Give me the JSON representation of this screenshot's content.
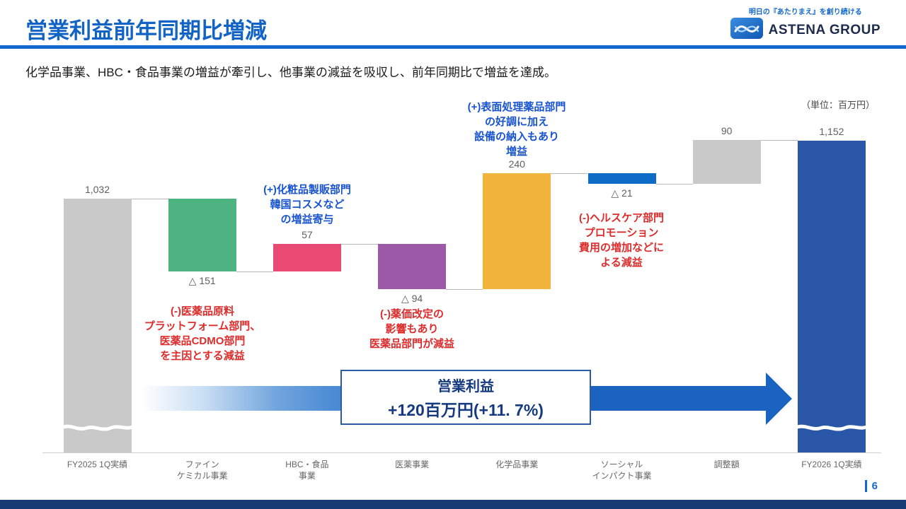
{
  "slide": {
    "title": "営業利益前年同期比増減",
    "lead": "化学品事業、HBC・食品事業の増益が牽引し、他事業の減益を吸収し、前年同期比で増益を達成。",
    "unit_label": "（単位：百万円）",
    "page_number": "6"
  },
  "logo": {
    "tagline": "明日の『あたりまえ』を創り続ける",
    "name": "ASTENA GROUP"
  },
  "summary_box": {
    "line1": "営業利益",
    "line2": "+120百万円(+11. 7%)"
  },
  "annotations": {
    "chemical": {
      "text": "(+)表面処理薬品部門\nの好調に加え\n設備の納入もあり\n増益",
      "color": "#1853d2"
    },
    "hbc_food": {
      "text": "(+)化粧品製販部門\n韓国コスメなど\nの増益寄与",
      "color": "#1853d2"
    },
    "fine_chemical": {
      "text": "(-)医薬品原料\nプラットフォーム部門、\n医薬品CDMO部門\nを主因とする減益",
      "color": "#dd2c2c"
    },
    "pharma": {
      "text": "(-)薬価改定の\n影響もあり\n医薬品部門が減益",
      "color": "#dd2c2c"
    },
    "social": {
      "text": "(-)ヘルスケア部門\nプロモーション\n費用の増加などに\nよる減益",
      "color": "#dd2c2c"
    }
  },
  "colors": {
    "accent_blue": "#1468cd",
    "arrow_blue": "#1b63c0",
    "footer_navy": "#173a75",
    "positive_text": "#1853d2",
    "negative_text": "#dd2c2c"
  },
  "chart_data": {
    "type": "waterfall",
    "unit": "百万円",
    "start_value": 1032,
    "end_value": 1152,
    "total_change": "+120百万円(+11.7%)",
    "bars": [
      {
        "category": "FY2025 1Q実績",
        "label": "1,032",
        "value": 1032,
        "kind": "total",
        "color": "#c9c9c9",
        "label_pos": "above",
        "axis_break": true
      },
      {
        "category": "ファイン\nケミカル事業",
        "label": "△ 151",
        "value": -151,
        "kind": "delta",
        "color": "#4db381",
        "label_pos": "below"
      },
      {
        "category": "HBC・食品\n事業",
        "label": "57",
        "value": 57,
        "kind": "delta",
        "color": "#e94a73",
        "label_pos": "above"
      },
      {
        "category": "医薬事業",
        "label": "△ 94",
        "value": -94,
        "kind": "delta",
        "color": "#9b59a8",
        "label_pos": "below"
      },
      {
        "category": "化学品事業",
        "label": "240",
        "value": 240,
        "kind": "delta",
        "color": "#f3b43e",
        "label_pos": "above"
      },
      {
        "category": "ソーシャル\nインパクト事業",
        "label": "△ 21",
        "value": -21,
        "kind": "delta",
        "color": "#0f6cc6",
        "label_pos": "below"
      },
      {
        "category": "調整額",
        "label": "90",
        "value": 90,
        "kind": "delta",
        "color": "#c9c9c9",
        "label_pos": "above"
      },
      {
        "category": "FY2026 1Q実績",
        "label": "1,152",
        "value": 1152,
        "kind": "total",
        "color": "#2a56a8",
        "label_pos": "above",
        "axis_break": true
      }
    ]
  }
}
